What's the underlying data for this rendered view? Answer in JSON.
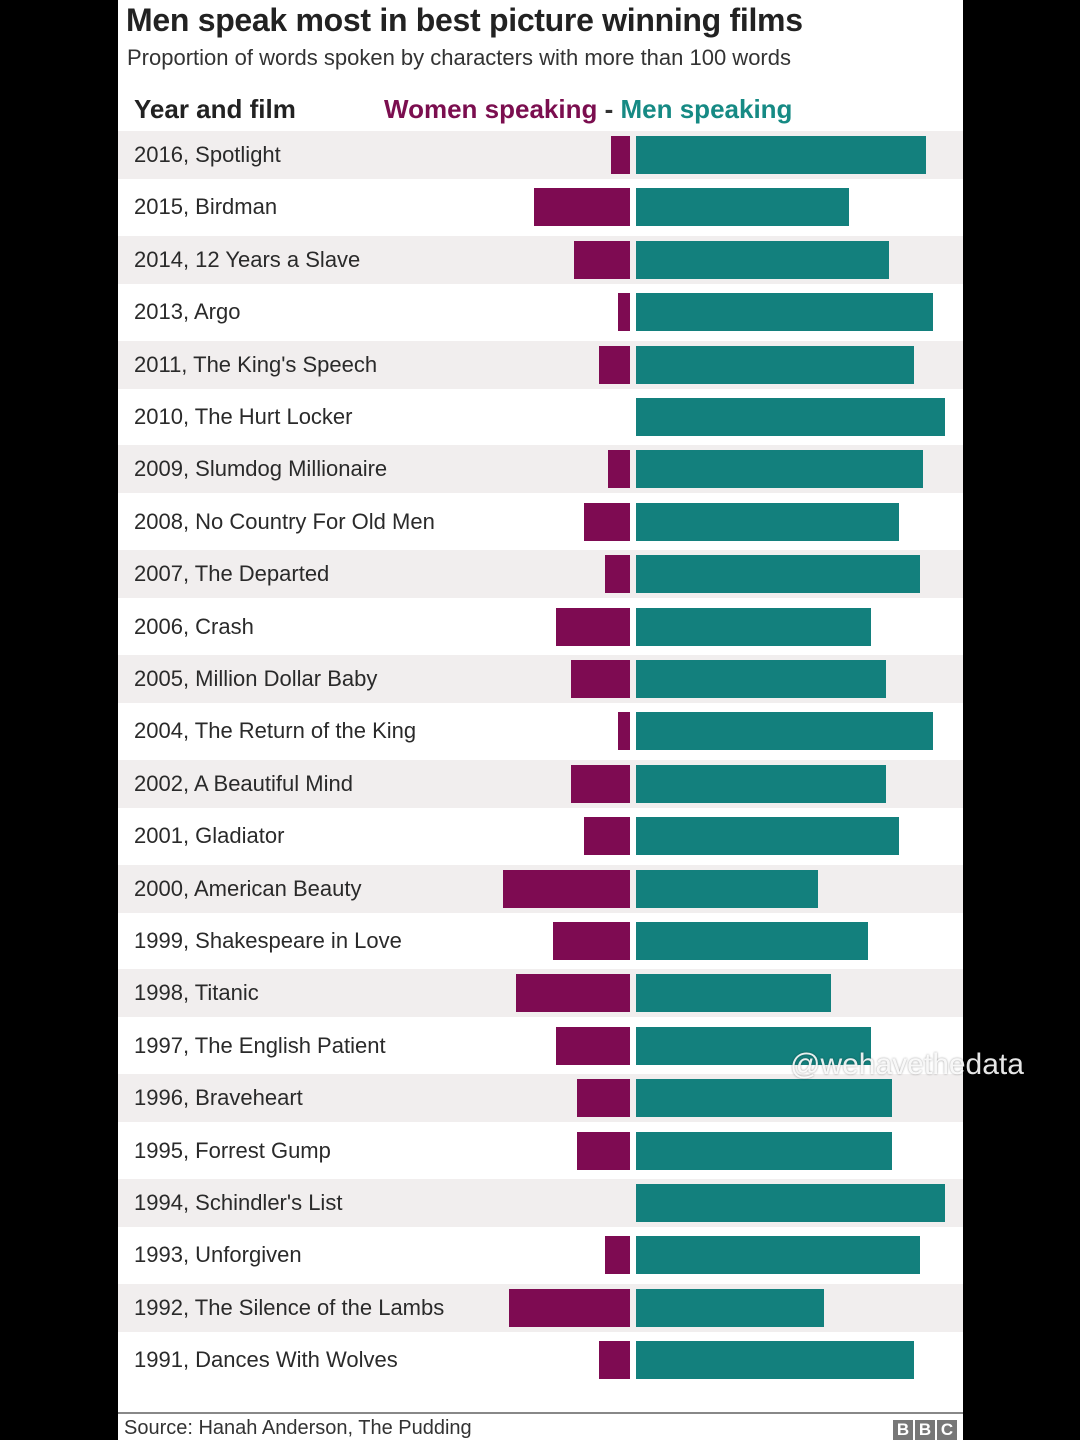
{
  "chart_data": {
    "type": "bar",
    "title": "Men speak most in best picture winning films",
    "subtitle": "Proportion of words spoken by characters with more than 100 words",
    "column_header": "Year and film",
    "legend": {
      "women": "Women speaking",
      "separator": "-",
      "men": "Men speaking"
    },
    "colors": {
      "women": "#7e0b52",
      "men": "#13807d"
    },
    "unit": "percent of words",
    "categories": [
      "2016, Spotlight",
      "2015, Birdman",
      "2014, 12 Years a Slave",
      "2013, Argo",
      "2011, The King's Speech",
      "2010, The Hurt Locker",
      "2009, Slumdog Millionaire",
      "2008, No Country For Old Men",
      "2007, The Departed",
      "2006, Crash",
      "2005, Million Dollar Baby",
      "2004, The Return of the King",
      "2002, A Beautiful Mind",
      "2001, Gladiator",
      "2000, American Beauty",
      "1999, Shakespeare in Love",
      "1998, Titanic",
      "1997, The English Patient",
      "1996, Braveheart",
      "1995, Forrest Gump",
      "1994, Schindler's List",
      "1993, Unforgiven",
      "1992, The Silence of the Lambs",
      "1991, Dances With Wolves"
    ],
    "series": [
      {
        "name": "Women speaking",
        "values": [
          6,
          31,
          18,
          4,
          10,
          0,
          7,
          15,
          8,
          24,
          19,
          4,
          19,
          15,
          41,
          25,
          37,
          24,
          17,
          17,
          0,
          8,
          39,
          10
        ]
      },
      {
        "name": "Men speaking",
        "values": [
          94,
          69,
          82,
          96,
          90,
          100,
          93,
          85,
          92,
          76,
          81,
          96,
          81,
          85,
          59,
          75,
          63,
          76,
          83,
          83,
          100,
          92,
          61,
          90
        ]
      }
    ],
    "xlim": [
      0,
      100
    ],
    "source": "Source: Hanah Anderson, The Pudding",
    "logo": "BBC"
  },
  "watermark": "@wehavethedata"
}
